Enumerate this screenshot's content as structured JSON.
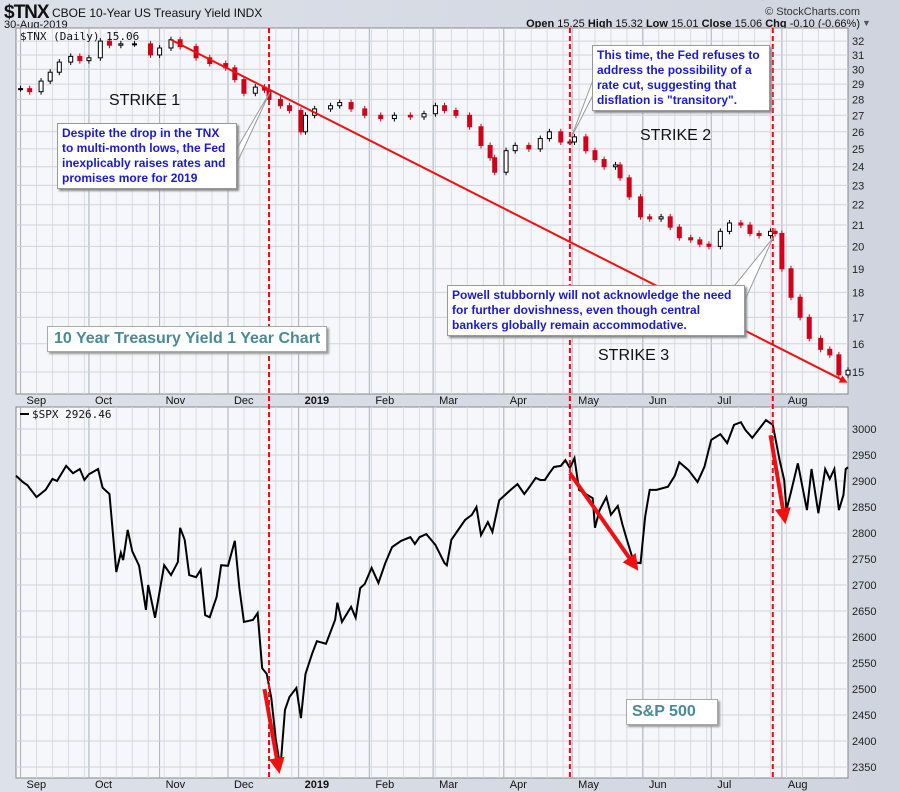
{
  "header": {
    "symbol": "$TNX",
    "description": "CBOE 10-Year US Treasury Yield INDX",
    "date": "30-Aug-2019",
    "brand": "© StockCharts.com",
    "open_label": "Open",
    "open": "15.25",
    "high_label": "High",
    "high": "15.32",
    "low_label": "Low",
    "low": "15.01",
    "close_label": "Close",
    "close": "15.06",
    "chg_label": "Chg",
    "chg": "-0.10 (-0.66%)"
  },
  "annotations": {
    "strike1": "STRIKE 1",
    "strike2": "STRIKE 2",
    "strike3": "STRIKE 3",
    "callout1": "Despite the drop in the TNX to multi-month lows, the Fed inexplicably raises rates and promises more for 2019",
    "callout2": "This time, the Fed refuses to address the possibility of a rate cut, suggesting that disflation is \"transitory\".",
    "callout3": "Powell stubbornly will not acknowledge the need for further dovishness, even though central bankers globally remain accommodative.",
    "title_box": "10 Year Treasury Yield 1 Year Chart",
    "spx_box": "S&P 500"
  },
  "colors": {
    "up": "#000000",
    "down": "#d0021b",
    "annot": "#1a1ac8",
    "title": "#4a8a96",
    "arrow": "#ee1111"
  },
  "chart_data": [
    {
      "type": "line",
      "title": "$TNX (Daily) 15.06",
      "scale": "log",
      "ylim": [
        14.5,
        32.6
      ],
      "yticks": [
        32,
        31,
        30,
        29,
        28,
        27,
        26,
        25,
        24,
        23,
        22,
        21,
        20,
        19,
        18,
        17,
        16,
        15
      ],
      "xlabel_note": "days since 30-Aug-2018",
      "month_ticks": [
        {
          "label": "Sep",
          "day": 2
        },
        {
          "label": "Oct",
          "day": 32
        },
        {
          "label": "Nov",
          "day": 63
        },
        {
          "label": "Dec",
          "day": 93
        },
        {
          "label": "2019",
          "day": 124
        },
        {
          "label": "Feb",
          "day": 155
        },
        {
          "label": "Mar",
          "day": 183
        },
        {
          "label": "Apr",
          "day": 214
        },
        {
          "label": "May",
          "day": 244
        },
        {
          "label": "Jun",
          "day": 275
        },
        {
          "label": "Jul",
          "day": 305
        },
        {
          "label": "Aug",
          "day": 336
        }
      ],
      "x": [
        2,
        6,
        11,
        15,
        19,
        24,
        28,
        32,
        37,
        41,
        46,
        52,
        59,
        63,
        68,
        72,
        79,
        85,
        92,
        96,
        100,
        105,
        109,
        111,
        116,
        120,
        125,
        127,
        131,
        138,
        142,
        147,
        153,
        160,
        166,
        173,
        179,
        184,
        188,
        193,
        199,
        204,
        208,
        210,
        215,
        219,
        225,
        230,
        234,
        239,
        243,
        245,
        250,
        254,
        258,
        263,
        265,
        269,
        274,
        278,
        283,
        287,
        291,
        296,
        300,
        304,
        309,
        313,
        318,
        322,
        326,
        331,
        333,
        336,
        340,
        344,
        348,
        353,
        357,
        361,
        365
      ],
      "values": [
        28.7,
        28.5,
        29.2,
        29.8,
        30.5,
        30.9,
        30.6,
        30.8,
        32.0,
        31.7,
        31.8,
        31.8,
        31.0,
        31.5,
        32.1,
        31.6,
        30.8,
        30.4,
        30.1,
        29.3,
        28.4,
        28.8,
        28.6,
        28.0,
        27.6,
        27.3,
        26.0,
        27.0,
        27.4,
        27.6,
        27.8,
        27.4,
        27.0,
        26.8,
        27.0,
        26.9,
        27.1,
        27.6,
        27.3,
        27.0,
        26.3,
        25.2,
        24.5,
        23.7,
        24.9,
        25.2,
        25.0,
        25.6,
        26.0,
        25.4,
        25.4,
        25.7,
        24.9,
        24.4,
        24.0,
        24.1,
        23.4,
        22.4,
        21.4,
        21.3,
        21.4,
        20.9,
        20.4,
        20.3,
        20.1,
        20.0,
        20.7,
        21.1,
        21.0,
        20.6,
        20.5,
        20.7,
        20.6,
        19.0,
        17.8,
        17.0,
        16.2,
        15.8,
        15.6,
        14.9,
        15.06
      ],
      "event_days": [
        111,
        243,
        332
      ],
      "trendline": {
        "from": {
          "day": 68,
          "value": 32.1
        },
        "to": {
          "day": 365,
          "value": 14.7
        }
      }
    },
    {
      "type": "line",
      "title": "$SPX 2926.46",
      "scale": "linear",
      "ylim": [
        2330,
        3030
      ],
      "yticks": [
        3000,
        2950,
        2900,
        2850,
        2800,
        2750,
        2700,
        2650,
        2600,
        2550,
        2500,
        2450,
        2400,
        2350
      ],
      "x": [
        0,
        3,
        5,
        9,
        13,
        16,
        18,
        22,
        25,
        28,
        30,
        32,
        36,
        38,
        41,
        44,
        46,
        47,
        49,
        51,
        54,
        57,
        58,
        61,
        65,
        68,
        71,
        72,
        74,
        76,
        79,
        81,
        83,
        85,
        88,
        90,
        93,
        96,
        98,
        100,
        104,
        106,
        108,
        110,
        112,
        114,
        116,
        118,
        120,
        123,
        125,
        127,
        130,
        132,
        136,
        138,
        140,
        141,
        143,
        147,
        149,
        151,
        153,
        156,
        159,
        162,
        165,
        169,
        173,
        175,
        177,
        180,
        184,
        188,
        189,
        191,
        194,
        197,
        200,
        202,
        204,
        207,
        209,
        212,
        217,
        220,
        223,
        225,
        228,
        230,
        232,
        234,
        236,
        239,
        241,
        243,
        245,
        247,
        253,
        254,
        256,
        259,
        261,
        264,
        266,
        268,
        271,
        274,
        276,
        278,
        281,
        286,
        289,
        291,
        295,
        299,
        302,
        305,
        309,
        312,
        315,
        318,
        320,
        323,
        326,
        329,
        332,
        335,
        337,
        338,
        340,
        343,
        347,
        349,
        352,
        355,
        357,
        359,
        361,
        363,
        364,
        365
      ],
      "values": [
        2910,
        2898,
        2892,
        2869,
        2883,
        2904,
        2900,
        2929,
        2915,
        2923,
        2902,
        2913,
        2923,
        2887,
        2875,
        2725,
        2762,
        2748,
        2806,
        2765,
        2737,
        2652,
        2700,
        2637,
        2738,
        2719,
        2744,
        2810,
        2787,
        2719,
        2715,
        2729,
        2642,
        2638,
        2677,
        2738,
        2737,
        2785,
        2694,
        2629,
        2633,
        2646,
        2540,
        2529,
        2483,
        2402,
        2348,
        2460,
        2485,
        2502,
        2444,
        2529,
        2569,
        2592,
        2587,
        2610,
        2633,
        2666,
        2629,
        2658,
        2637,
        2694,
        2702,
        2733,
        2704,
        2742,
        2773,
        2785,
        2792,
        2779,
        2792,
        2798,
        2777,
        2742,
        2738,
        2787,
        2806,
        2825,
        2835,
        2850,
        2796,
        2821,
        2802,
        2863,
        2883,
        2894,
        2875,
        2887,
        2906,
        2902,
        2902,
        2915,
        2927,
        2929,
        2940,
        2925,
        2944,
        2883,
        2867,
        2810,
        2844,
        2869,
        2835,
        2852,
        2817,
        2787,
        2744,
        2742,
        2831,
        2883,
        2883,
        2889,
        2910,
        2936,
        2921,
        2898,
        2927,
        2979,
        2990,
        2973,
        3008,
        3013,
        2998,
        2983,
        3000,
        3017,
        3008,
        2940,
        2902,
        2844,
        2879,
        2934,
        2844,
        2923,
        2838,
        2923,
        2904,
        2923,
        2844,
        2873,
        2923,
        2926.46
      ],
      "arrows": [
        {
          "from": {
            "day": 109,
            "value": 2500
          },
          "to": {
            "day": 115,
            "value": 2352
          }
        },
        {
          "from": {
            "day": 243,
            "value": 2915
          },
          "to": {
            "day": 271,
            "value": 2740
          }
        },
        {
          "from": {
            "day": 331,
            "value": 2988
          },
          "to": {
            "day": 337,
            "value": 2832
          }
        }
      ]
    }
  ]
}
